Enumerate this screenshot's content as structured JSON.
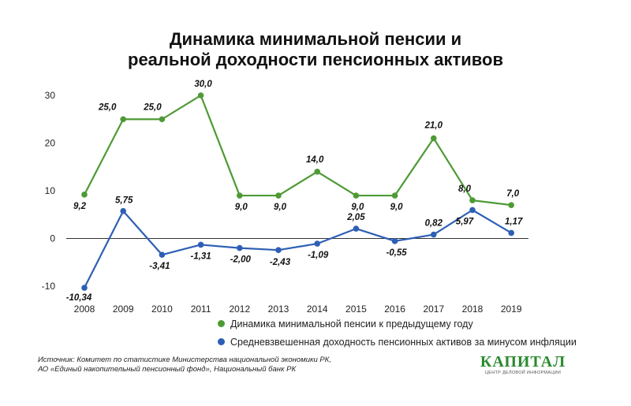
{
  "title_line1": "Динамика минимальной пенсии и",
  "title_line2": "реальной доходности пенсионных активов",
  "chart_data": {
    "type": "line",
    "x": [
      "2008",
      "2009",
      "2010",
      "2011",
      "2012",
      "2013",
      "2014",
      "2015",
      "2016",
      "2017",
      "2018",
      "2019"
    ],
    "ylim": [
      -10,
      30
    ],
    "yticks": [
      "-10",
      "0",
      "10",
      "20",
      "30"
    ],
    "series": [
      {
        "name": "Динамика минимальной пенсии к предыдущему году",
        "color": "#4e9a35",
        "values": [
          9.2,
          25.0,
          25.0,
          30.0,
          9.0,
          9.0,
          14.0,
          9.0,
          9.0,
          21.0,
          8.0,
          7.0
        ],
        "labels": [
          "9,2",
          "25,0",
          "25,0",
          "30,0",
          "9,0",
          "9,0",
          "14,0",
          "9,0",
          "9,0",
          "21,0",
          "8,0",
          "7,0"
        ]
      },
      {
        "name": "Средневзвешенная доходность пенсионных активов за минусом инфляции",
        "color": "#2e5fb5",
        "values": [
          -10.34,
          5.75,
          -3.41,
          -1.31,
          -2.0,
          -2.43,
          -1.09,
          2.05,
          -0.55,
          0.82,
          5.97,
          1.17
        ],
        "labels": [
          "-10,34",
          "5,75",
          "-3,41",
          "-1,31",
          "-2,00",
          "-2,43",
          "-1,09",
          "2,05",
          "-0,55",
          "0,82",
          "5,97",
          "1,17"
        ]
      }
    ],
    "grid": false,
    "legend": "bottom"
  },
  "source_line1": "Источник: Комитет по статистике Министерства национальной экономики РК,",
  "source_line2": "АО «Единый накопительный пенсионный фонд», Национальный банк РК",
  "logo": {
    "text": "КАПИТАЛ",
    "subtitle": "ЦЕНТР ДЕЛОВОЙ ИНФОРМАЦИИ"
  }
}
